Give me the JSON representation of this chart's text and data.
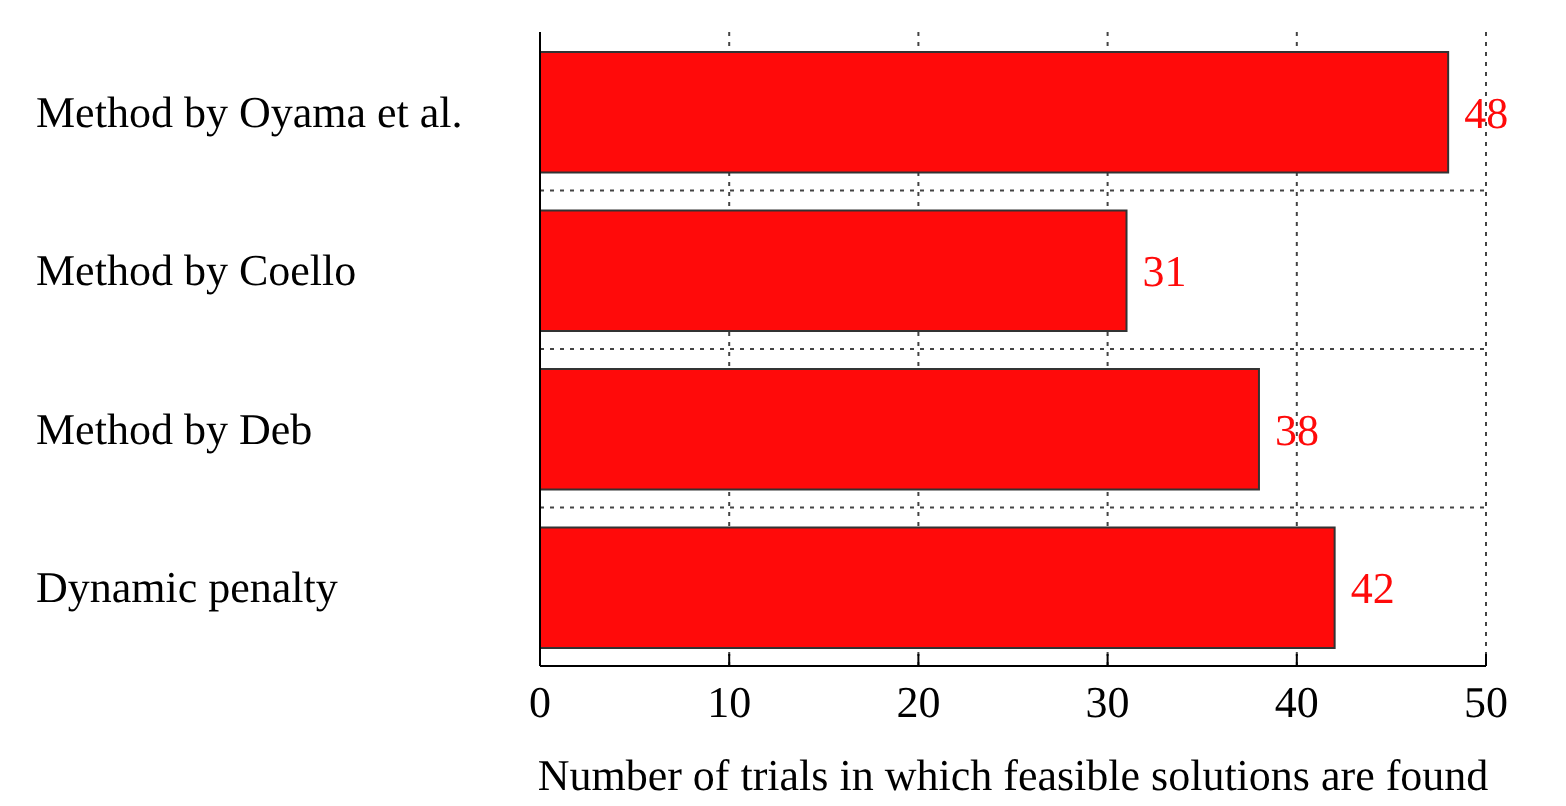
{
  "chart_data": {
    "type": "bar",
    "orientation": "horizontal",
    "xlabel": "Number of trials in which feasible solutions are found",
    "categories": [
      "Method by Oyama et al.",
      "Method by Coello",
      "Method by Deb",
      "Dynamic penalty"
    ],
    "values": [
      48,
      31,
      38,
      42
    ],
    "color": "#ff0a0a",
    "xlim": [
      0,
      50
    ],
    "xticks": [
      0,
      10,
      20,
      30,
      40,
      50
    ],
    "grid": true,
    "data_labels": true
  }
}
